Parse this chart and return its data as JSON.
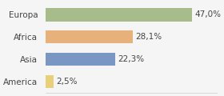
{
  "categories": [
    "America",
    "Asia",
    "Africa",
    "Europa"
  ],
  "values": [
    2.5,
    22.3,
    28.1,
    47.0
  ],
  "labels": [
    "2,5%",
    "22,3%",
    "28,1%",
    "47,0%"
  ],
  "bar_colors": [
    "#e8d07a",
    "#7a96c2",
    "#e8b07a",
    "#a8bb8a"
  ],
  "background_color": "#f5f5f5",
  "xlim": [
    0,
    55
  ],
  "label_fontsize": 7.5,
  "tick_fontsize": 7.5
}
